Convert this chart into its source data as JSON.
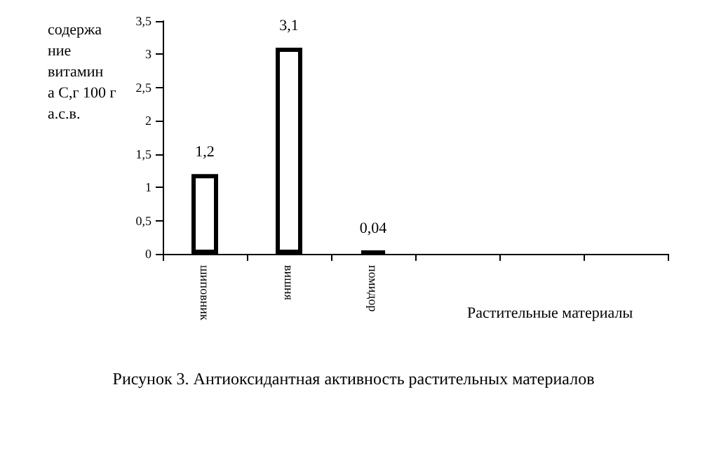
{
  "chart_data": {
    "type": "bar",
    "title": "Рисунок 3. Антиоксидантная активность растительных материалов",
    "xlabel": "Растительные материалы",
    "ylabel": "содержание витамина С,г 100 г а.с.в.",
    "categories": [
      "шиповник",
      "вишня",
      "помидор",
      null,
      null,
      null
    ],
    "values": [
      1.2,
      3.1,
      0.04,
      null,
      null,
      null
    ],
    "value_labels": [
      "1,2",
      "3,1",
      "0,04",
      null,
      null,
      null
    ],
    "colors": [
      "#ffffff",
      "#ffffff",
      "#000000",
      null,
      null,
      null
    ],
    "ylim": [
      0,
      3.5
    ],
    "yticks": [
      {
        "value": 0,
        "label": "0"
      },
      {
        "value": 0.5,
        "label": "0,5"
      },
      {
        "value": 1,
        "label": "1"
      },
      {
        "value": 1.5,
        "label": "1,5"
      },
      {
        "value": 2,
        "label": "2"
      },
      {
        "value": 2.5,
        "label": "2,5"
      },
      {
        "value": 3,
        "label": "3"
      },
      {
        "value": 3.5,
        "label": "3,5"
      }
    ],
    "grid": false
  }
}
